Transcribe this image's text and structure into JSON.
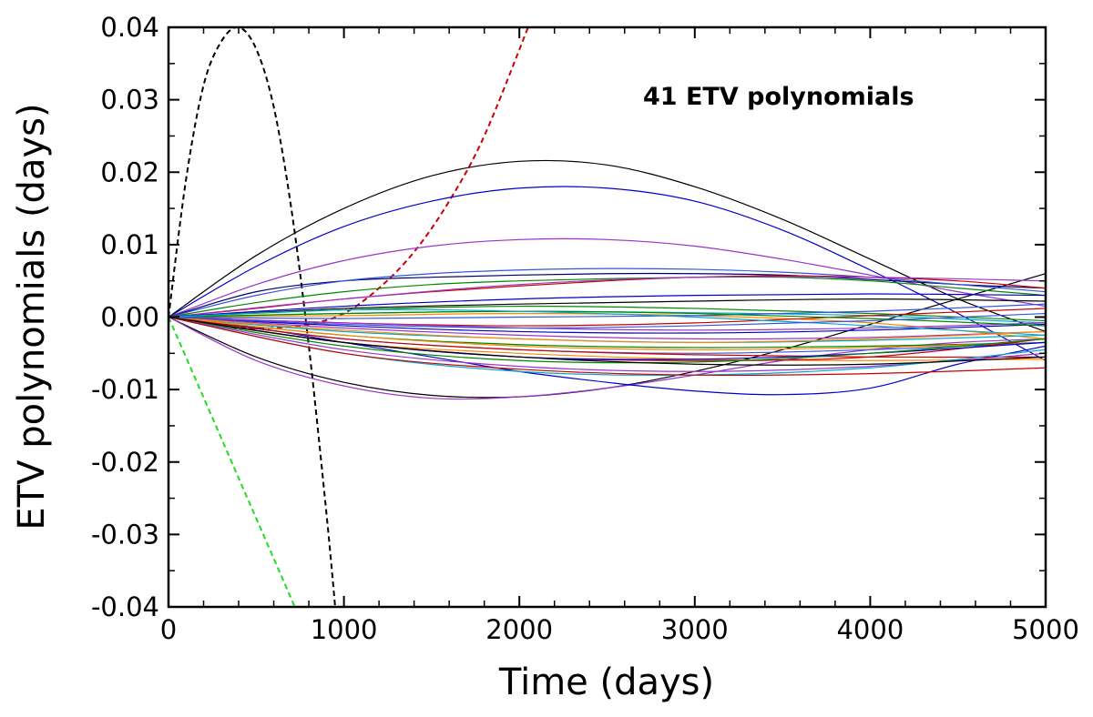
{
  "chart_data": {
    "type": "line",
    "title": "",
    "xlabel": "Time (days)",
    "ylabel": "ETV polynomials (days)",
    "annotation": "41 ETV polynomials",
    "xlim": [
      0,
      5000
    ],
    "ylim": [
      -0.04,
      0.04
    ],
    "x_ticks": [
      0,
      1000,
      2000,
      3000,
      4000,
      5000
    ],
    "x_tick_labels": [
      "0",
      "1000",
      "2000",
      "3000",
      "4000",
      "5000"
    ],
    "y_ticks": [
      -0.04,
      -0.03,
      -0.02,
      -0.01,
      0.0,
      0.01,
      0.02,
      0.03,
      0.04
    ],
    "y_tick_labels": [
      "-0.04",
      "-0.03",
      "-0.02",
      "-0.01",
      "0.00",
      "0.01",
      "0.02",
      "0.03",
      "0.04"
    ],
    "grid": false,
    "legend": "none",
    "series": [
      {
        "color": "#000000",
        "dashed": true,
        "x": [
          0,
          100,
          200,
          300,
          400,
          500,
          600,
          700,
          800,
          900,
          950
        ],
        "y": [
          0,
          0.019,
          0.032,
          0.038,
          0.04,
          0.037,
          0.029,
          0.015,
          -0.004,
          -0.027,
          -0.04
        ]
      },
      {
        "color": "#cc0000",
        "dashed": true,
        "x": [
          0,
          200,
          400,
          600,
          800,
          1000,
          1200,
          1400,
          1600,
          1800,
          2050
        ],
        "y": [
          0,
          -0.0008,
          -0.0015,
          -0.0015,
          -0.001,
          0.0005,
          0.004,
          0.009,
          0.016,
          0.025,
          0.04
        ]
      },
      {
        "color": "#22dd22",
        "dashed": true,
        "x": [
          0,
          720
        ],
        "y": [
          0,
          -0.04
        ]
      },
      {
        "color": "#000000",
        "dashed": false,
        "x": [
          0,
          500,
          1000,
          1500,
          2000,
          2500,
          3000,
          3500,
          4000,
          4500,
          5000
        ],
        "y": [
          0,
          0.0085,
          0.015,
          0.0195,
          0.0215,
          0.021,
          0.018,
          0.0135,
          0.008,
          0.0025,
          -0.002
        ]
      },
      {
        "color": "#0000cc",
        "dashed": false,
        "x": [
          0,
          500,
          1000,
          1500,
          2000,
          2500,
          3000,
          3500,
          4000,
          4500,
          5000
        ],
        "y": [
          0,
          0.007,
          0.0125,
          0.016,
          0.0178,
          0.0178,
          0.016,
          0.012,
          0.0065,
          0.0005,
          -0.006
        ]
      },
      {
        "color": "#9933cc",
        "dashed": false,
        "x": [
          0,
          500,
          1000,
          1500,
          2000,
          2500,
          3000,
          3500,
          4000,
          4500,
          5000
        ],
        "y": [
          0,
          0.0045,
          0.0078,
          0.0098,
          0.0107,
          0.0107,
          0.0098,
          0.008,
          0.0058,
          0.0035,
          0.0015
        ]
      },
      {
        "color": "#000000",
        "dashed": false,
        "x": [
          0,
          500,
          1000,
          1500,
          2000,
          2500,
          3000,
          3500,
          4000,
          4500,
          5000
        ],
        "y": [
          0,
          -0.0055,
          -0.009,
          -0.0108,
          -0.011,
          -0.0098,
          -0.0075,
          -0.0045,
          -0.001,
          0.0025,
          0.006
        ]
      },
      {
        "color": "#9933cc",
        "dashed": false,
        "x": [
          0,
          500,
          1000,
          1500,
          2000,
          2500,
          3000,
          3500,
          4000,
          4500,
          5000
        ],
        "y": [
          0,
          -0.006,
          -0.0095,
          -0.0112,
          -0.011,
          -0.0098,
          -0.008,
          -0.006,
          -0.0045,
          -0.0035,
          -0.003
        ]
      },
      {
        "color": "#0000cc",
        "dashed": false,
        "x": [
          0,
          500,
          1000,
          1500,
          2000,
          2500,
          3000,
          3500,
          4000,
          4500,
          5000
        ],
        "y": [
          0,
          -0.0015,
          -0.0035,
          -0.0055,
          -0.0075,
          -0.009,
          -0.0102,
          -0.0107,
          -0.0098,
          -0.0065,
          -0.004
        ]
      },
      {
        "color": "#000066",
        "dashed": false,
        "x": [
          0,
          500,
          1000,
          1500,
          2000,
          2500,
          3000,
          3500,
          4000,
          4500,
          5000
        ],
        "y": [
          0,
          0.0035,
          0.005,
          0.0055,
          0.0058,
          0.006,
          0.006,
          0.0058,
          0.0052,
          0.0045,
          0.004
        ]
      },
      {
        "color": "#3355dd",
        "dashed": false,
        "x": [
          0,
          500,
          1000,
          1500,
          2000,
          2500,
          3000,
          3500,
          4000,
          4500,
          5000
        ],
        "y": [
          0,
          0.003,
          0.005,
          0.006,
          0.0065,
          0.0067,
          0.0066,
          0.0062,
          0.0055,
          0.0045,
          0.0035
        ]
      },
      {
        "color": "#008800",
        "dashed": false,
        "x": [
          0,
          500,
          1000,
          1500,
          2000,
          2500,
          3000,
          3500,
          4000,
          4500,
          5000
        ],
        "y": [
          0,
          0.002,
          0.0035,
          0.0045,
          0.005,
          0.0053,
          0.0055,
          0.0055,
          0.005,
          0.004,
          0.003
        ]
      },
      {
        "color": "#cc0000",
        "dashed": false,
        "x": [
          0,
          500,
          1000,
          1500,
          2000,
          2500,
          3000,
          3500,
          4000,
          4500,
          5000
        ],
        "y": [
          0,
          0.0012,
          0.0025,
          0.0035,
          0.0043,
          0.005,
          0.0055,
          0.0057,
          0.0055,
          0.005,
          0.004
        ]
      },
      {
        "color": "#9933cc",
        "dashed": false,
        "x": [
          0,
          1000,
          2000,
          3000,
          4000,
          5000
        ],
        "y": [
          0,
          0.0025,
          0.0045,
          0.0055,
          0.0055,
          0.005
        ]
      },
      {
        "color": "#000000",
        "dashed": false,
        "x": [
          0,
          1000,
          2000,
          3000,
          4000,
          5000
        ],
        "y": [
          0,
          0.0012,
          0.0018,
          0.0022,
          0.0025,
          0.0022
        ]
      },
      {
        "color": "#008800",
        "dashed": false,
        "x": [
          0,
          1000,
          2000,
          3000,
          4000,
          5000
        ],
        "y": [
          0,
          0.001,
          0.0015,
          0.0012,
          0.0005,
          -0.0005
        ]
      },
      {
        "color": "#00aacc",
        "dashed": false,
        "x": [
          0,
          1000,
          2000,
          3000,
          4000,
          5000
        ],
        "y": [
          0,
          0.0005,
          0.0008,
          0.0006,
          0.0002,
          -0.0008
        ]
      },
      {
        "color": "#ff8800",
        "dashed": false,
        "x": [
          0,
          1000,
          2000,
          3000,
          4000,
          5000
        ],
        "y": [
          0,
          0.0002,
          0.0005,
          0.0002,
          -0.0008,
          -0.003
        ]
      },
      {
        "color": "#3355dd",
        "dashed": false,
        "x": [
          0,
          1000,
          2000,
          3000,
          4000,
          5000
        ],
        "y": [
          0,
          -0.0002,
          0.0,
          0.0002,
          0.0008,
          0.0018
        ]
      },
      {
        "color": "#cc0000",
        "dashed": false,
        "x": [
          0,
          1000,
          2000,
          3000,
          4000,
          5000
        ],
        "y": [
          0,
          -0.0008,
          -0.0012,
          -0.0008,
          0.0002,
          0.0012
        ]
      },
      {
        "color": "#0000cc",
        "dashed": false,
        "x": [
          0,
          1000,
          2000,
          3000,
          4000,
          5000
        ],
        "y": [
          0,
          -0.0012,
          -0.002,
          -0.0022,
          -0.0018,
          -0.001
        ]
      },
      {
        "color": "#9933cc",
        "dashed": false,
        "x": [
          0,
          1000,
          2000,
          3000,
          4000,
          5000
        ],
        "y": [
          0,
          -0.0015,
          -0.0025,
          -0.003,
          -0.0028,
          -0.002
        ]
      },
      {
        "color": "#00aacc",
        "dashed": false,
        "x": [
          0,
          1000,
          2000,
          3000,
          4000,
          5000
        ],
        "y": [
          0,
          -0.002,
          -0.003,
          -0.0035,
          -0.0032,
          -0.0025
        ]
      },
      {
        "color": "#008800",
        "dashed": false,
        "x": [
          0,
          1000,
          2000,
          3000,
          4000,
          5000
        ],
        "y": [
          0,
          -0.0025,
          -0.0038,
          -0.0042,
          -0.004,
          -0.0035
        ]
      },
      {
        "color": "#ff8800",
        "dashed": false,
        "x": [
          0,
          1000,
          2000,
          3000,
          4000,
          5000
        ],
        "y": [
          0,
          -0.0025,
          -0.004,
          -0.0045,
          -0.0042,
          -0.0035
        ]
      },
      {
        "color": "#3355dd",
        "dashed": false,
        "x": [
          0,
          1000,
          2000,
          3000,
          4000,
          5000
        ],
        "y": [
          0,
          -0.003,
          -0.0045,
          -0.005,
          -0.0045,
          -0.0035
        ]
      },
      {
        "color": "#cc0000",
        "dashed": false,
        "x": [
          0,
          1000,
          2000,
          3000,
          4000,
          5000
        ],
        "y": [
          0,
          -0.003,
          -0.0045,
          -0.0052,
          -0.0055,
          -0.0055
        ]
      },
      {
        "color": "#ff8800",
        "dashed": false,
        "x": [
          0,
          1000,
          2000,
          3000,
          4000,
          5000
        ],
        "y": [
          0,
          -0.0035,
          -0.005,
          -0.0058,
          -0.006,
          -0.0058
        ]
      },
      {
        "color": "#cc0000",
        "dashed": false,
        "x": [
          0,
          1000,
          2000,
          3000,
          4000,
          5000
        ],
        "y": [
          0,
          -0.0035,
          -0.0055,
          -0.006,
          -0.0055,
          -0.003
        ]
      },
      {
        "color": "#0000cc",
        "dashed": false,
        "x": [
          0,
          1000,
          2000,
          3000,
          4000,
          5000
        ],
        "y": [
          0,
          -0.0035,
          -0.0055,
          -0.0058,
          -0.005,
          -0.0035
        ]
      },
      {
        "color": "#008800",
        "dashed": false,
        "x": [
          0,
          1000,
          2000,
          3000,
          4000,
          5000
        ],
        "y": [
          0,
          -0.004,
          -0.006,
          -0.0062,
          -0.005,
          -0.003
        ]
      },
      {
        "color": "#9933cc",
        "dashed": false,
        "x": [
          0,
          1000,
          2000,
          3000,
          4000,
          5000
        ],
        "y": [
          0,
          -0.0045,
          -0.0068,
          -0.0075,
          -0.0068,
          -0.005
        ]
      },
      {
        "color": "#00aacc",
        "dashed": false,
        "x": [
          0,
          1000,
          2000,
          3000,
          4000,
          5000
        ],
        "y": [
          0,
          -0.005,
          -0.0075,
          -0.008,
          -0.007,
          -0.0045
        ]
      },
      {
        "color": "#cc0000",
        "dashed": false,
        "x": [
          0,
          1000,
          2000,
          3000,
          4000,
          5000
        ],
        "y": [
          0,
          -0.005,
          -0.0072,
          -0.008,
          -0.0078,
          -0.007
        ]
      },
      {
        "color": "#000000",
        "dashed": false,
        "x": [
          0,
          1000,
          2000,
          3000,
          4000,
          5000
        ],
        "y": [
          0,
          -0.0035,
          -0.0055,
          -0.0065,
          -0.0065,
          -0.0055
        ]
      },
      {
        "color": "#9933cc",
        "dashed": false,
        "x": [
          0,
          1000,
          2000,
          3000,
          4000,
          5000
        ],
        "y": [
          0,
          -0.0008,
          -0.0015,
          -0.0018,
          -0.0015,
          -0.0008
        ]
      },
      {
        "color": "#008800",
        "dashed": false,
        "x": [
          0,
          1000,
          2000,
          3000,
          4000,
          5000
        ],
        "y": [
          0,
          0.0005,
          0.0008,
          0.0005,
          -0.0002,
          -0.0012
        ]
      },
      {
        "color": "#0000cc",
        "dashed": false,
        "x": [
          0,
          1000,
          2000,
          3000,
          4000,
          5000
        ],
        "y": [
          0,
          0.0015,
          0.0025,
          0.003,
          0.0032,
          0.003
        ]
      },
      {
        "color": "#00aacc",
        "dashed": false,
        "x": [
          0,
          1000,
          2000,
          3000,
          4000,
          5000
        ],
        "y": [
          0,
          0.001,
          0.0008,
          0.0,
          -0.0012,
          -0.0025
        ]
      },
      {
        "color": "#ff8800",
        "dashed": false,
        "x": [
          0,
          1000,
          2000,
          3000,
          4000,
          5000
        ],
        "y": [
          0,
          -0.0018,
          -0.003,
          -0.0035,
          -0.003,
          -0.002
        ]
      },
      {
        "color": "#3355dd",
        "dashed": false,
        "x": [
          0,
          1000,
          2000,
          3000,
          4000,
          5000
        ],
        "y": [
          0,
          -0.001,
          -0.0015,
          -0.0012,
          -0.0005,
          0.0005
        ]
      }
    ]
  }
}
